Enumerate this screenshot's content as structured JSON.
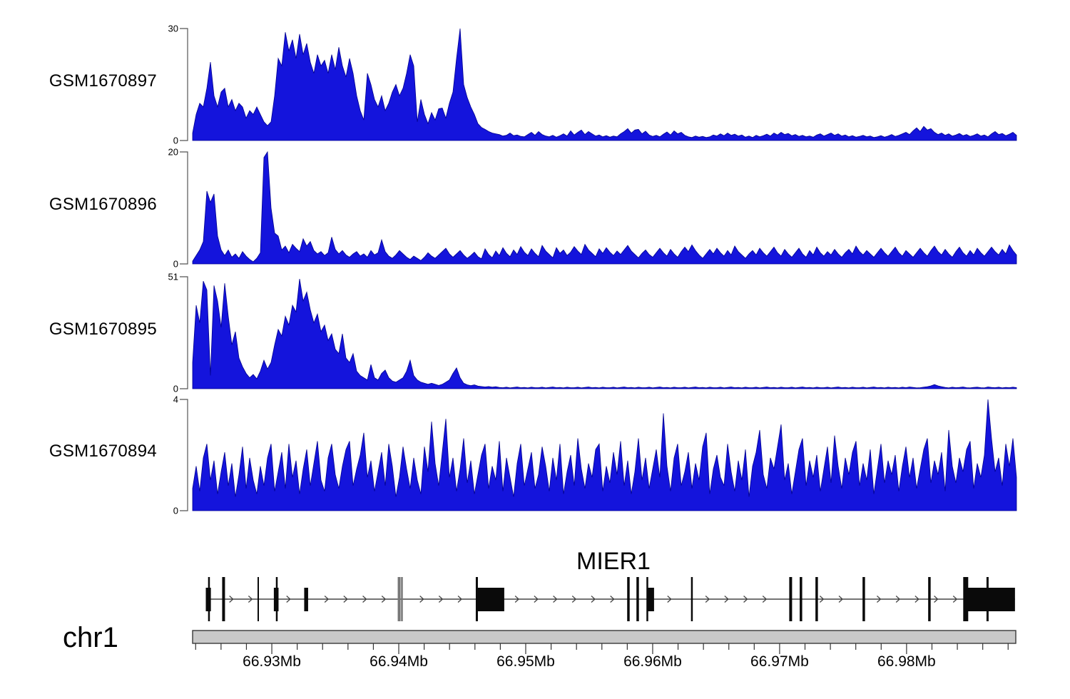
{
  "chart_data": {
    "type": "area",
    "description_visible_text_only": true,
    "colors": {
      "signal_fill": "#1414dc",
      "signal_stroke": "#000090",
      "gene_color": "#0a0a0a",
      "gene_gray": "#777777",
      "chrom_bar_fill": "#c9c9c9",
      "axis_color": "#444444",
      "tick_color": "#333333"
    },
    "x_axis": {
      "chromosome": "chr1",
      "unit": "Mb",
      "start_mb": 66.92376,
      "end_mb": 66.98866,
      "first_tick_mb": 66.924,
      "last_tick_mb": 66.988,
      "minor_tick_step_mb": 0.002,
      "major_ticks": [
        {
          "mb": 66.93,
          "label": "66.93Mb"
        },
        {
          "mb": 66.94,
          "label": "66.94Mb"
        },
        {
          "mb": 66.95,
          "label": "66.95Mb"
        },
        {
          "mb": 66.96,
          "label": "66.96Mb"
        },
        {
          "mb": 66.97,
          "label": "66.97Mb"
        },
        {
          "mb": 66.98,
          "label": "66.98Mb"
        }
      ]
    },
    "gene_track": {
      "gene_name": "MIER1",
      "strand_direction": "right",
      "intron_span_mb": [
        66.92505,
        66.98854
      ],
      "exon_lines_mb": [
        {
          "mb": 66.92505,
          "w": 2.5
        },
        {
          "mb": 66.9262,
          "w": 4
        },
        {
          "mb": 66.92893,
          "w": 2
        },
        {
          "mb": 66.93039,
          "w": 2.5
        },
        {
          "mb": 66.94003,
          "w": 4,
          "shade": "gray"
        },
        {
          "mb": 66.94025,
          "w": 2.5,
          "shade": "gray"
        },
        {
          "mb": 66.94615,
          "w": 3
        },
        {
          "mb": 66.95809,
          "w": 3.5
        },
        {
          "mb": 66.95882,
          "w": 3.5
        },
        {
          "mb": 66.95958,
          "w": 2.5
        },
        {
          "mb": 66.96309,
          "w": 2.5
        },
        {
          "mb": 66.97087,
          "w": 4
        },
        {
          "mb": 66.97168,
          "w": 3.5
        },
        {
          "mb": 66.97292,
          "w": 3.5
        },
        {
          "mb": 66.97663,
          "w": 3.5
        },
        {
          "mb": 66.9818,
          "w": 3.5
        },
        {
          "mb": 66.98466,
          "w": 7
        },
        {
          "mb": 66.98638,
          "w": 3
        }
      ],
      "exon_boxes_mb": [
        [
          66.9248,
          66.9252
        ],
        [
          66.93016,
          66.93053
        ],
        [
          66.93255,
          66.93286
        ],
        [
          66.94612,
          66.94831
        ],
        [
          66.95955,
          66.96011
        ],
        [
          66.98483,
          66.98854
        ]
      ]
    },
    "tracks": [
      {
        "label": "GSM1670897",
        "ymax": 30,
        "ymax_label": "30",
        "ymin_label": "0",
        "values": [
          2,
          7,
          10,
          9,
          14,
          21,
          12,
          9,
          13,
          14,
          9,
          11,
          8,
          10,
          9,
          6,
          8,
          7,
          9,
          7,
          5,
          4,
          5,
          12,
          22,
          20,
          29,
          24,
          27,
          22,
          28.5,
          23,
          26,
          21,
          18,
          23,
          20,
          21.5,
          18,
          23,
          19,
          25,
          20,
          17,
          22,
          18,
          12,
          8,
          5.5,
          18,
          15,
          11,
          9,
          12,
          8,
          10,
          13,
          15,
          12,
          14,
          18,
          23,
          20,
          5,
          11,
          7,
          4.5,
          7.5,
          5.5,
          8.5,
          8.7,
          6,
          10,
          13,
          22,
          30,
          15,
          11.5,
          9,
          7,
          4.5,
          3.5,
          3,
          2.4,
          2,
          1.8,
          1.6,
          1.2,
          1.4,
          2,
          1.3,
          1.5,
          1.1,
          1,
          1.6,
          2.2,
          1.4,
          2.4,
          1.6,
          1.2,
          1,
          1.4,
          0.9,
          1.3,
          1.8,
          1.2,
          2.6,
          1.5,
          2.2,
          2.8,
          1.6,
          2.4,
          1.8,
          1.2,
          1.5,
          1,
          1.3,
          0.9,
          1.2,
          1,
          1.8,
          2.4,
          3.2,
          2,
          2.8,
          3,
          1.8,
          2.5,
          1.5,
          1.1,
          1.4,
          1,
          1.7,
          2.3,
          1.5,
          2.6,
          1.8,
          2.2,
          1.4,
          1,
          0.8,
          1.2,
          0.9,
          1.1,
          0.8,
          1,
          1.5,
          1.2,
          1.8,
          1.3,
          2,
          1.4,
          1.7,
          1.2,
          1.5,
          0.9,
          1.2,
          0.8,
          1.4,
          1,
          1.3,
          1.7,
          1.2,
          2,
          1.5,
          2.2,
          1.6,
          1.9,
          1.3,
          1.6,
          1.1,
          1.4,
          1,
          1.2,
          0.9,
          1.5,
          1.8,
          1.2,
          1.6,
          2,
          1.4,
          1.8,
          1.2,
          1.5,
          1,
          1.3,
          0.9,
          1.1,
          1.4,
          1,
          1.2,
          0.8,
          1,
          1.3,
          0.9,
          1.2,
          1.6,
          1.1,
          1.4,
          1.8,
          2.2,
          1.6,
          2.6,
          3.4,
          2.4,
          3.8,
          2.8,
          3.2,
          2.2,
          1.6,
          2,
          1.4,
          1.8,
          1.2,
          1.5,
          1.9,
          1.3,
          1.6,
          1.1,
          1.4,
          1.8,
          1.2,
          1.5,
          1,
          1.8,
          2.4,
          1.6,
          1.9,
          1.3,
          1.7,
          2.2,
          1.4
        ]
      },
      {
        "label": "GSM1670896",
        "ymax": 20,
        "ymax_label": "20",
        "ymin_label": "0",
        "values": [
          0.5,
          1.5,
          2.5,
          4,
          13,
          11,
          12.5,
          5,
          2.5,
          1.5,
          2.5,
          1.2,
          1.8,
          1,
          2.2,
          1.4,
          0.8,
          0.4,
          1,
          2,
          19,
          20,
          10,
          5.5,
          5,
          2.5,
          3.2,
          2,
          3.5,
          2.8,
          2.2,
          4.5,
          3.2,
          4,
          2.4,
          1.8,
          2.2,
          1.5,
          2,
          4.8,
          2.6,
          1.8,
          2.4,
          1.6,
          1.2,
          1.8,
          2.2,
          1.4,
          1.8,
          1.2,
          2.4,
          1.6,
          2,
          4.3,
          2.2,
          1.4,
          1,
          1.6,
          2.4,
          1.8,
          1.2,
          0.8,
          1.4,
          1,
          0.6,
          1.2,
          2,
          1.4,
          1,
          1.6,
          2.2,
          2.8,
          1.8,
          1.2,
          1.8,
          2.4,
          1.6,
          1,
          1.5,
          2.1,
          1.3,
          0.9,
          2.7,
          1.7,
          1.1,
          2.3,
          1.5,
          2.9,
          1.9,
          1.3,
          2.5,
          1.7,
          3.1,
          2.1,
          1.5,
          2.7,
          1.9,
          1.3,
          3.3,
          2.3,
          1.7,
          1.1,
          2.9,
          1.9,
          2.5,
          1.5,
          2.1,
          3.1,
          2.3,
          1.7,
          3.5,
          2.5,
          1.9,
          1.3,
          2.7,
          1.9,
          2.9,
          2.1,
          1.5,
          2.3,
          1.7,
          2.5,
          3.3,
          2.3,
          1.7,
          1.1,
          1.9,
          2.5,
          1.7,
          1.2,
          2,
          2.8,
          2,
          1.4,
          2.6,
          1.8,
          1.2,
          2.2,
          3,
          2.2,
          3.4,
          2.4,
          1.6,
          1,
          1.8,
          2.6,
          1.8,
          2.8,
          2,
          1.4,
          2.4,
          1.6,
          3.2,
          2.2,
          1.6,
          1,
          1.8,
          2.4,
          1.6,
          2.8,
          2,
          1.4,
          2.2,
          3,
          2,
          1.4,
          2.6,
          1.8,
          1.2,
          2,
          2.8,
          1.8,
          1.2,
          2.4,
          1.6,
          3,
          2,
          1.4,
          2.2,
          1.6,
          2.6,
          1.8,
          1.2,
          2,
          2.6,
          1.8,
          3.2,
          2.2,
          1.6,
          2.4,
          1.8,
          1.2,
          2,
          2.8,
          2,
          1.4,
          2.2,
          3,
          2,
          1.4,
          2.4,
          1.8,
          1.2,
          2,
          2.8,
          2,
          1.4,
          2.4,
          3.2,
          2.2,
          1.6,
          2.6,
          1.8,
          1.2,
          2.2,
          3,
          2,
          1.4,
          2.4,
          1.6,
          2.8,
          2,
          1.4,
          2.2,
          3,
          2.2,
          1.6,
          2.6,
          1.8,
          3.4,
          2.4,
          1.6
        ]
      },
      {
        "label": "GSM1670895",
        "ymax": 51,
        "ymax_label": "51",
        "ymin_label": "0",
        "values": [
          12,
          38,
          30,
          49,
          45,
          6,
          47,
          40,
          28,
          48,
          33,
          20,
          26,
          14,
          10,
          7,
          5,
          6.5,
          4.5,
          8,
          13,
          9,
          12,
          20,
          27,
          24,
          33,
          29,
          38,
          35,
          50,
          40,
          44,
          36,
          30,
          34,
          26,
          29,
          22,
          25,
          18,
          16,
          25,
          14,
          12,
          16,
          8,
          6,
          5,
          4,
          11,
          5,
          4,
          7,
          8.5,
          5,
          3.5,
          3,
          4,
          5,
          8,
          13,
          6,
          4,
          3,
          2.5,
          2,
          2.5,
          2,
          1.5,
          2,
          3,
          4,
          7,
          9.5,
          5,
          2.5,
          1.8,
          1.4,
          1.8,
          1.2,
          1,
          0.8,
          1,
          0.7,
          0.9,
          0.6,
          0.5,
          0.7,
          0.4,
          0.6,
          0.8,
          0.5,
          0.6,
          0.4,
          0.7,
          0.5,
          0.5,
          0.7,
          0.4,
          0.6,
          0.8,
          0.5,
          0.6,
          0.4,
          0.7,
          0.5,
          0.5,
          0.7,
          0.4,
          0.6,
          0.8,
          0.5,
          0.6,
          0.4,
          0.7,
          0.5,
          0.5,
          0.7,
          0.4,
          0.6,
          0.8,
          0.5,
          0.6,
          0.4,
          0.7,
          0.5,
          0.5,
          0.7,
          0.4,
          0.6,
          0.8,
          0.5,
          0.6,
          0.4,
          0.7,
          0.5,
          0.5,
          0.7,
          0.4,
          0.6,
          0.8,
          0.5,
          0.6,
          0.4,
          0.7,
          0.5,
          0.5,
          0.7,
          0.4,
          0.6,
          0.8,
          0.5,
          0.6,
          0.4,
          0.7,
          0.5,
          0.5,
          0.7,
          0.4,
          0.6,
          0.8,
          0.5,
          0.6,
          0.4,
          0.7,
          0.5,
          0.5,
          0.7,
          0.4,
          0.6,
          0.8,
          0.5,
          0.6,
          0.4,
          0.7,
          0.5,
          0.5,
          0.7,
          0.4,
          0.6,
          0.8,
          0.5,
          0.6,
          0.4,
          0.7,
          0.5,
          0.5,
          0.7,
          0.4,
          0.6,
          0.8,
          0.5,
          0.6,
          0.4,
          0.7,
          0.5,
          0.6,
          0.4,
          0.7,
          0.5,
          0.8,
          0.6,
          0.4,
          0.5,
          0.7,
          0.9,
          1.3,
          1.9,
          1.3,
          0.9,
          0.6,
          0.4,
          0.7,
          0.5,
          0.6,
          0.8,
          0.5,
          0.4,
          0.6,
          0.7,
          0.5,
          0.4,
          0.8,
          0.6,
          0.5,
          0.7,
          0.4,
          0.6,
          0.5,
          0.7,
          0.5
        ]
      },
      {
        "label": "GSM1670894",
        "ymax": 4,
        "ymax_label": "4",
        "ymin_label": "0",
        "values": [
          0.8,
          1.6,
          0.7,
          1.9,
          2.4,
          1.1,
          1.8,
          0.6,
          1.4,
          2.1,
          0.9,
          1.7,
          0.5,
          1.3,
          2.3,
          0.8,
          1.9,
          1.1,
          0.6,
          1.6,
          0.9,
          1.9,
          2.4,
          0.7,
          1.4,
          2.1,
          0.8,
          2.4,
          1.2,
          1.8,
          0.6,
          1.5,
          2.2,
          0.9,
          1.7,
          2.5,
          1.1,
          0.7,
          1.9,
          2.4,
          1.3,
          0.8,
          1.6,
          2.2,
          2.5,
          0.9,
          1.5,
          2,
          2.8,
          1.2,
          1.8,
          0.7,
          1.4,
          2.1,
          0.9,
          2.4,
          1.6,
          0.5,
          1.2,
          2.3,
          1.5,
          0.8,
          1.9,
          1.1,
          0.6,
          2.3,
          1.4,
          3.2,
          1.7,
          0.9,
          2.1,
          3.3,
          1.2,
          1.9,
          0.7,
          1.5,
          2.6,
          1,
          1.8,
          0.6,
          1.3,
          2,
          2.4,
          0.8,
          1.6,
          1.1,
          2.5,
          0.7,
          1.9,
          1.2,
          0.5,
          1.7,
          2.4,
          0.9,
          1.5,
          2.1,
          0.8,
          1.3,
          2.3,
          1.6,
          0.7,
          1.9,
          1.1,
          2.4,
          0.6,
          1.4,
          2,
          0.9,
          2.6,
          1.5,
          0.8,
          1.7,
          1.2,
          2.2,
          2.4,
          0.7,
          1.6,
          1,
          2.1,
          1.3,
          2.5,
          0.9,
          1.8,
          0.6,
          1.4,
          2.6,
          1.1,
          1.9,
          0.8,
          1.5,
          2.2,
          1.2,
          3.5,
          1.6,
          0.7,
          1.9,
          2.4,
          0.9,
          1.4,
          2.1,
          0.8,
          1.7,
          1.1,
          2.3,
          2.8,
          0.6,
          1.5,
          2,
          1.2,
          0.9,
          2.4,
          1.4,
          0.7,
          1.8,
          1.1,
          2.2,
          0.5,
          1.6,
          2.1,
          2.9,
          1.3,
          0.8,
          1.9,
          1.5,
          2.3,
          3.1,
          1.1,
          1.7,
          0.6,
          1.4,
          2.2,
          2.6,
          0.9,
          1.8,
          1.2,
          2,
          0.7,
          1.5,
          2.3,
          1,
          2.7,
          1.6,
          0.8,
          1.9,
          1.3,
          2.1,
          2.5,
          0.9,
          1.7,
          1.1,
          2.2,
          0.6,
          1.5,
          2.4,
          1,
          1.8,
          1.3,
          2,
          0.7,
          1.6,
          2.3,
          1.2,
          1.9,
          0.8,
          1.5,
          2.2,
          2.6,
          1,
          1.8,
          1.3,
          2.1,
          0.7,
          2.9,
          1.6,
          1,
          1.9,
          1.4,
          2.2,
          2.5,
          0.8,
          1.7,
          1.2,
          2,
          4,
          2.6,
          1.4,
          1.9,
          0.9,
          2.4,
          1.6,
          2.6,
          1.2
        ]
      }
    ]
  }
}
